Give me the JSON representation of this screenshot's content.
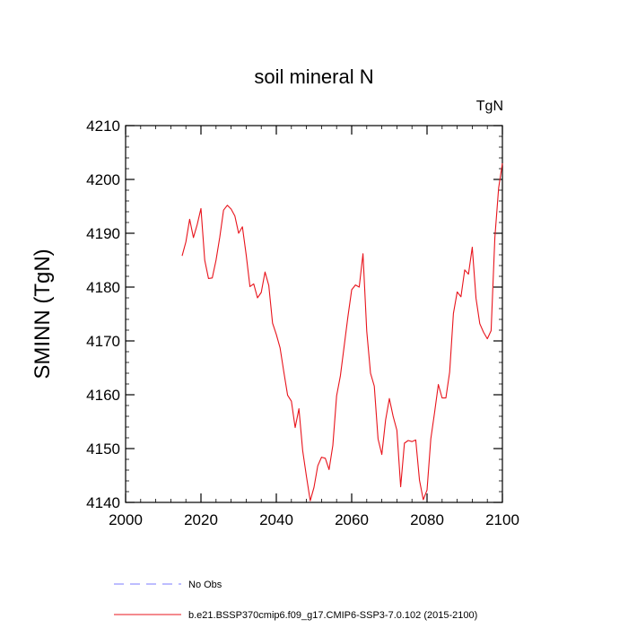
{
  "chart_data": {
    "type": "line",
    "title": "soil mineral N",
    "units_label": "TgN",
    "ylabel": "SMINN  (TgN)",
    "xlabel": "",
    "xlim": [
      2000,
      2100
    ],
    "ylim": [
      4140,
      4210
    ],
    "xticks": [
      2000,
      2020,
      2040,
      2060,
      2080,
      2100
    ],
    "yticks": [
      4140,
      4150,
      4160,
      4170,
      4180,
      4190,
      4200,
      4210
    ],
    "grid": false,
    "series": [
      {
        "name": "b.e21.BSSP370cmip6.f09_g17.CMIP6-SSP3-7.0.102 (2015-2100)",
        "color": "#e8141c",
        "x": [
          2015,
          2016,
          2017,
          2018,
          2019,
          2020,
          2021,
          2022,
          2023,
          2024,
          2025,
          2026,
          2027,
          2028,
          2029,
          2030,
          2031,
          2032,
          2033,
          2034,
          2035,
          2036,
          2037,
          2038,
          2039,
          2040,
          2041,
          2042,
          2043,
          2044,
          2045,
          2046,
          2047,
          2048,
          2049,
          2050,
          2051,
          2052,
          2053,
          2054,
          2055,
          2056,
          2057,
          2058,
          2059,
          2060,
          2061,
          2062,
          2063,
          2064,
          2065,
          2066,
          2067,
          2068,
          2069,
          2070,
          2071,
          2072,
          2073,
          2074,
          2075,
          2076,
          2077,
          2078,
          2079,
          2080,
          2081,
          2082,
          2083,
          2084,
          2085,
          2086,
          2087,
          2088,
          2089,
          2090,
          2091,
          2092,
          2093,
          2094,
          2095,
          2096,
          2097,
          2098,
          2099,
          2100
        ],
        "y": [
          4185.8,
          4188.4,
          4192.6,
          4189.2,
          4191.6,
          4194.6,
          4185.0,
          4181.6,
          4181.7,
          4185.0,
          4189.3,
          4194.3,
          4195.2,
          4194.5,
          4193.2,
          4190.0,
          4191.2,
          4186.0,
          4180.1,
          4180.6,
          4178.0,
          4179.0,
          4182.8,
          4180.3,
          4173.3,
          4171.2,
          4168.7,
          4164.2,
          4159.9,
          4158.8,
          4153.9,
          4157.4,
          4149.6,
          4144.8,
          4140.3,
          4142.8,
          4146.8,
          4148.4,
          4148.2,
          4146.1,
          4150.6,
          4159.8,
          4163.5,
          4169.0,
          4174.5,
          4179.5,
          4180.4,
          4180.0,
          4186.2,
          4171.8,
          4164.0,
          4161.6,
          4151.8,
          4148.9,
          4155.3,
          4159.3,
          4156.0,
          4153.4,
          4142.9,
          4151.0,
          4151.5,
          4151.3,
          4151.6,
          4144.1,
          4140.5,
          4142.3,
          4151.8,
          4156.7,
          4161.9,
          4159.4,
          4159.4,
          4164.2,
          4175.1,
          4179.1,
          4178.2,
          4183.2,
          4182.4,
          4187.4,
          4177.9,
          4173.2,
          4171.6,
          4170.4,
          4171.9,
          4189.2,
          4198.4,
          4203.0
        ]
      }
    ],
    "legend": [
      {
        "label": "No Obs",
        "color": "#7b7bff",
        "style": "dashed"
      },
      {
        "label": "b.e21.BSSP370cmip6.f09_g17.CMIP6-SSP3-7.0.102 (2015-2100)",
        "color": "#e8141c",
        "style": "solid"
      }
    ],
    "legend_position": "bottom-left"
  }
}
